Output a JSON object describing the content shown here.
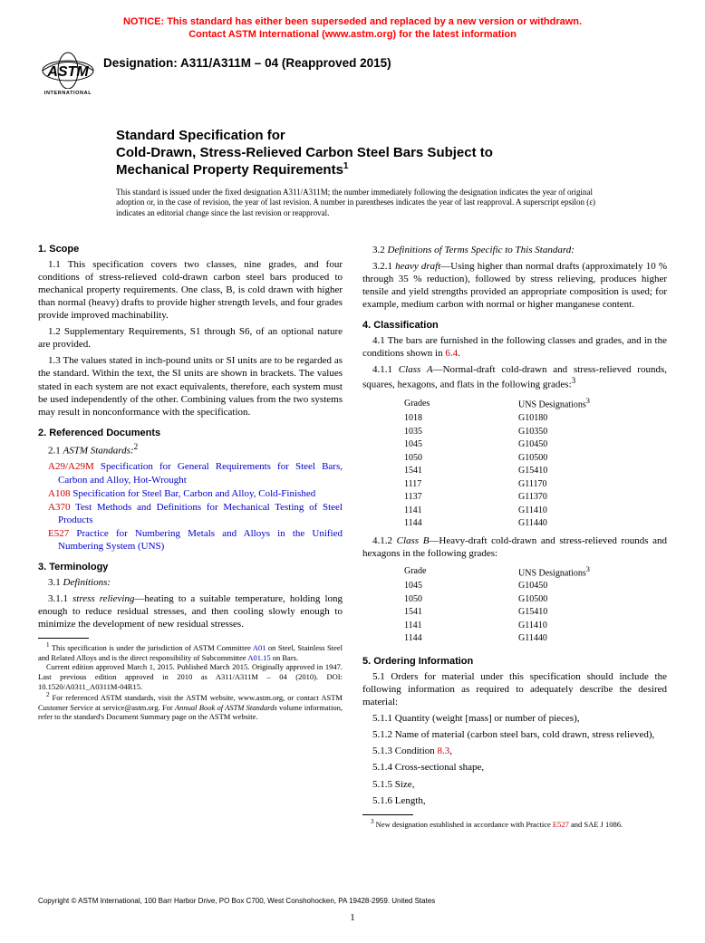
{
  "notice": {
    "line1": "NOTICE: This standard has either been superseded and replaced by a new version or withdrawn.",
    "line2": "Contact ASTM International (www.astm.org) for the latest information"
  },
  "logo": {
    "org": "INTERNATIONAL"
  },
  "designation": "Designation: A311/A311M – 04 (Reapproved 2015)",
  "title": {
    "line1": "Standard Specification for",
    "line2": "Cold-Drawn, Stress-Relieved Carbon Steel Bars Subject to",
    "line3": "Mechanical Property Requirements",
    "sup": "1"
  },
  "issued": "This standard is issued under the fixed designation A311/A311M; the number immediately following the designation indicates the year of original adoption or, in the case of revision, the year of last revision. A number in parentheses indicates the year of last reapproval. A superscript epsilon (ε) indicates an editorial change since the last revision or reapproval.",
  "left": {
    "s1": {
      "head": "1. Scope",
      "p11": "1.1 This specification covers two classes, nine grades, and four conditions of stress-relieved cold-drawn carbon steel bars produced to mechanical property requirements. One class, B, is cold drawn with higher than normal (heavy) drafts to provide higher strength levels, and four grades provide improved machinability.",
      "p12": "1.2 Supplementary Requirements, S1 through S6, of an optional nature are provided.",
      "p13": "1.3 The values stated in inch-pound units or SI units are to be regarded as the standard. Within the text, the SI units are shown in brackets. The values stated in each system are not exact equivalents, therefore, each system must be used independently of the other. Combining values from the two systems may result in nonconformance with the specification."
    },
    "s2": {
      "head": "2. Referenced Documents",
      "p21": "2.1 ",
      "p21i": "ASTM Standards:",
      "p21s": "2",
      "r1a": "A29/A29M",
      "r1b": " Specification for General Requirements for Steel Bars, Carbon and Alloy, Hot-Wrought",
      "r2a": "A108",
      "r2b": " Specification for Steel Bar, Carbon and Alloy, Cold-Finished",
      "r3a": "A370",
      "r3b": " Test Methods and Definitions for Mechanical Testing of Steel Products",
      "r4a": "E527",
      "r4b": " Practice for Numbering Metals and Alloys in the Unified Numbering System (UNS)"
    },
    "s3": {
      "head": "3. Terminology",
      "p31": "3.1 ",
      "p31i": "Definitions:",
      "p311n": "3.1.1 ",
      "p311t": "stress relieving",
      "p311b": "—heating to a suitable temperature, holding long enough to reduce residual stresses, and then cooling slowly enough to minimize the development of new residual stresses."
    },
    "fn1": {
      "sup": "1",
      "a": " This specification is under the jurisdiction of ASTM Committee ",
      "l1": "A01",
      "b": " on Steel, Stainless Steel and Related Alloys and is the direct responsibility of Subcommittee ",
      "l2": "A01.15",
      "c": " on Bars."
    },
    "fn1b": "Current edition approved March 1, 2015. Published March 2015. Originally approved in 1947. Last previous edition approved in 2010 as A311/A311M – 04 (2010). DOI: 10.1520/A0311_A0311M-04R15.",
    "fn2": {
      "sup": "2",
      "a": " For referenced ASTM standards, visit the ASTM website, www.astm.org, or contact ASTM Customer Service at service@astm.org. For ",
      "i": "Annual Book of ASTM Standards",
      "b": " volume information, refer to the standard's Document Summary page on the ASTM website."
    }
  },
  "right": {
    "p32": "3.2 ",
    "p32i": "Definitions of Terms Specific to This Standard:",
    "p321n": "3.2.1 ",
    "p321t": "heavy draft",
    "p321b": "—Using higher than normal drafts (approximately 10 % through 35 % reduction), followed by stress relieving, produces higher tensile and yield strengths provided an appropriate composition is used; for example, medium carbon with normal or higher manganese content.",
    "s4": {
      "head": "4. Classification",
      "p41a": "4.1 The bars are furnished in the following classes and grades, and in the conditions shown in ",
      "p41l": "6.4",
      "p41b": ".",
      "p411n": "4.1.1 ",
      "p411t": "Class A",
      "p411b": "—Normal-draft cold-drawn and stress-relieved rounds, squares, hexagons, and flats in the following grades:",
      "p411s": "3",
      "tblA": {
        "h1": "Grades",
        "h2": "UNS Designations",
        "hs": "3",
        "rows": [
          [
            "1018",
            "G10180"
          ],
          [
            "1035",
            "G10350"
          ],
          [
            "1045",
            "G10450"
          ],
          [
            "1050",
            "G10500"
          ],
          [
            "1541",
            "G15410"
          ],
          [
            "1117",
            "G11170"
          ],
          [
            "1137",
            "G11370"
          ],
          [
            "1141",
            "G11410"
          ],
          [
            "1144",
            "G11440"
          ]
        ]
      },
      "p412n": "4.1.2 ",
      "p412t": "Class B",
      "p412b": "—Heavy-draft cold-drawn and stress-relieved rounds and hexagons in the following grades:",
      "tblB": {
        "h1": "Grade",
        "h2": "UNS Designations",
        "hs": "3",
        "rows": [
          [
            "1045",
            "G10450"
          ],
          [
            "1050",
            "G10500"
          ],
          [
            "1541",
            "G15410"
          ],
          [
            "1141",
            "G11410"
          ],
          [
            "1144",
            "G11440"
          ]
        ]
      }
    },
    "s5": {
      "head": "5. Ordering Information",
      "p51": "5.1 Orders for material under this specification should include the following information as required to adequately describe the desired material:",
      "p511": "5.1.1 Quantity (weight [mass] or number of pieces),",
      "p512": "5.1.2 Name of material (carbon steel bars, cold drawn, stress relieved),",
      "p513a": "5.1.3 Condition ",
      "p513l": "8.3",
      "p513b": ",",
      "p514": "5.1.4 Cross-sectional shape,",
      "p515": "5.1.5 Size,",
      "p516": "5.1.6 Length,"
    },
    "fn3": {
      "sup": "3",
      "a": " New designation established in accordance with Practice ",
      "l": "E527",
      "b": " and SAE J 1086."
    }
  },
  "copyright": "Copyright © ASTM International, 100 Barr Harbor Drive, PO Box C700, West Conshohocken, PA 19428-2959. United States",
  "page": "1"
}
